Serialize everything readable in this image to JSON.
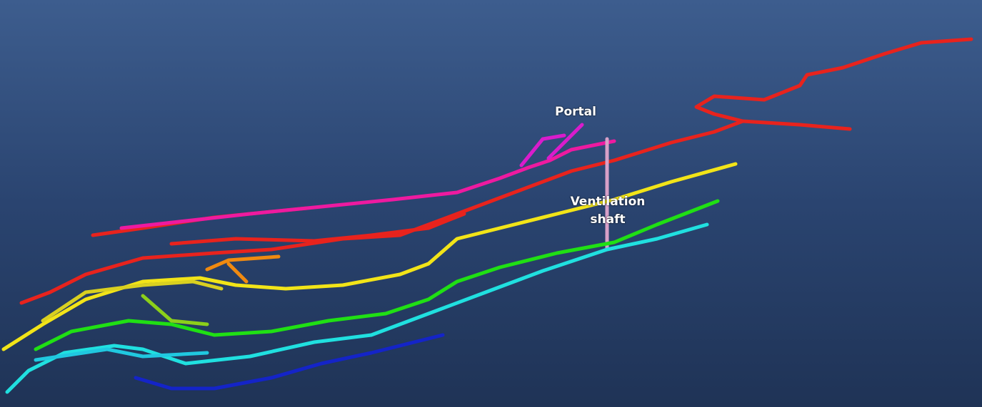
{
  "labels": {
    "portal": "Portal",
    "ventilation_shaft": "Ventilation shaft"
  }
}
